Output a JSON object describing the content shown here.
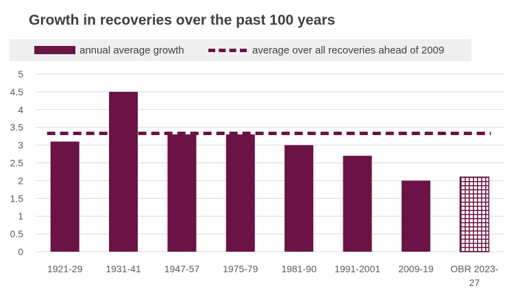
{
  "chart_data": {
    "type": "bar",
    "title": "Growth in recoveries over the past 100 years",
    "categories": [
      "1921-29",
      "1931-41",
      "1947-57",
      "1975-79",
      "1981-90",
      "1991-2001",
      "2009-19",
      "OBR 2023-27"
    ],
    "category_lines": [
      [
        "1921-29"
      ],
      [
        "1931-41"
      ],
      [
        "1947-57"
      ],
      [
        "1975-79"
      ],
      [
        "1981-90"
      ],
      [
        "1991-2001"
      ],
      [
        "2009-19"
      ],
      [
        "OBR 2023-",
        "27"
      ]
    ],
    "series": [
      {
        "name": "annual average growth",
        "values": [
          3.1,
          4.5,
          3.3,
          3.3,
          3.0,
          2.7,
          2.0,
          2.1
        ]
      }
    ],
    "reference_line": {
      "name": "average over all recoveries ahead of 2009",
      "value": 3.33
    },
    "hatched_categories": [
      "OBR 2023-27"
    ],
    "y_ticks": [
      "0",
      "0.5",
      "1",
      "1.5",
      "2",
      "2.5",
      "3",
      "3.5",
      "4",
      "4.5",
      "5"
    ],
    "ylim": [
      0,
      5
    ],
    "grid": true,
    "legend_position": "top",
    "colors": {
      "bar": "#6b1345",
      "grid": "#d9d9d9",
      "legend_bg": "#efefef"
    }
  }
}
